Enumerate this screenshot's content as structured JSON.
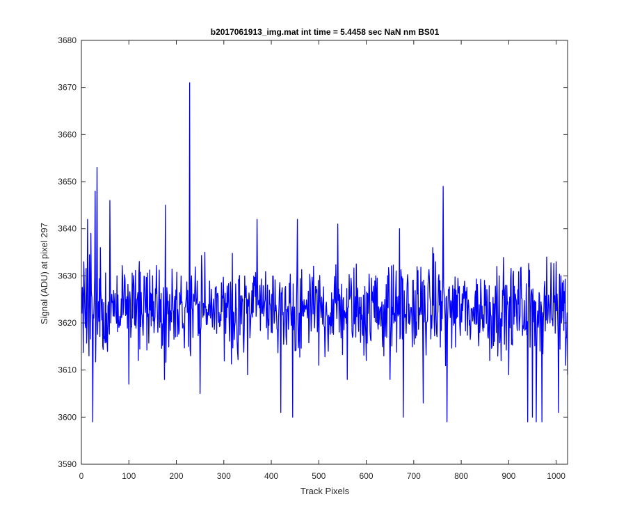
{
  "chart_data": {
    "type": "line",
    "title": "b2017061913_img.mat int time = 5.4458 sec  NaN nm BS01",
    "xlabel": "Track Pixels",
    "ylabel": "Signal (ADU) at pixel 297",
    "xlim": [
      0,
      1024
    ],
    "ylim": [
      3590,
      3680
    ],
    "xticks": [
      0,
      100,
      200,
      300,
      400,
      500,
      600,
      700,
      800,
      900,
      1000
    ],
    "yticks": [
      3590,
      3600,
      3610,
      3620,
      3630,
      3640,
      3650,
      3660,
      3670,
      3680
    ],
    "grid": false,
    "box": true,
    "series": [
      {
        "color": "#0000ff",
        "x_start": 1,
        "x_step": 1,
        "baseline": 3623,
        "noise_amplitude": 10,
        "points": [
          [
            1,
            3622
          ],
          [
            5,
            3633
          ],
          [
            9,
            3619
          ],
          [
            13,
            3642
          ],
          [
            16,
            3613
          ],
          [
            20,
            3639
          ],
          [
            23,
            3619
          ],
          [
            24,
            3599
          ],
          [
            26,
            3621
          ],
          [
            29,
            3648
          ],
          [
            31,
            3620
          ],
          [
            33,
            3653
          ],
          [
            35,
            3622
          ],
          [
            40,
            3636
          ],
          [
            45,
            3615
          ],
          [
            60,
            3646
          ],
          [
            62,
            3620
          ],
          [
            75,
            3630
          ],
          [
            100,
            3607
          ],
          [
            120,
            3612
          ],
          [
            150,
            3630
          ],
          [
            175,
            3608
          ],
          [
            177,
            3645
          ],
          [
            179,
            3620
          ],
          [
            200,
            3625
          ],
          [
            226,
            3615
          ],
          [
            228,
            3671
          ],
          [
            230,
            3613
          ],
          [
            232,
            3630
          ],
          [
            250,
            3605
          ],
          [
            260,
            3635
          ],
          [
            300,
            3625
          ],
          [
            350,
            3609
          ],
          [
            370,
            3642
          ],
          [
            400,
            3618
          ],
          [
            420,
            3601
          ],
          [
            445,
            3600
          ],
          [
            455,
            3642
          ],
          [
            500,
            3611
          ],
          [
            520,
            3614
          ],
          [
            540,
            3641
          ],
          [
            560,
            3608
          ],
          [
            600,
            3612
          ],
          [
            620,
            3630
          ],
          [
            650,
            3608
          ],
          [
            670,
            3640
          ],
          [
            678,
            3600
          ],
          [
            690,
            3624
          ],
          [
            700,
            3620
          ],
          [
            720,
            3603
          ],
          [
            740,
            3636
          ],
          [
            755,
            3629
          ],
          [
            762,
            3649
          ],
          [
            764,
            3626
          ],
          [
            770,
            3599
          ],
          [
            790,
            3621
          ],
          [
            800,
            3624
          ],
          [
            840,
            3620
          ],
          [
            860,
            3612
          ],
          [
            880,
            3630
          ],
          [
            900,
            3609
          ],
          [
            920,
            3624
          ],
          [
            940,
            3599
          ],
          [
            950,
            3600
          ],
          [
            958,
            3599
          ],
          [
            970,
            3599
          ],
          [
            980,
            3634
          ],
          [
            1000,
            3633
          ],
          [
            1005,
            3601
          ],
          [
            1010,
            3630
          ],
          [
            1015,
            3629
          ],
          [
            1020,
            3611
          ],
          [
            1024,
            3609
          ]
        ]
      }
    ]
  }
}
